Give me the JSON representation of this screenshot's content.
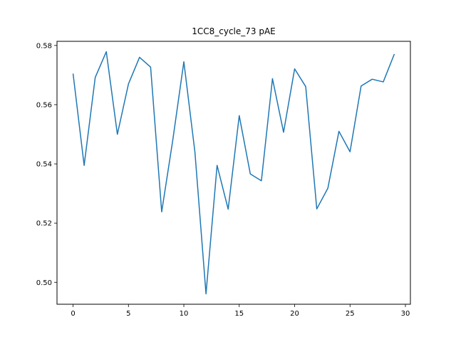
{
  "chart_data": {
    "type": "line",
    "title": "1CC8_cycle_73 pAE",
    "xlabel": "",
    "ylabel": "",
    "xlim": [
      -1.45,
      30.45
    ],
    "ylim": [
      0.4926,
      0.5814
    ],
    "x_ticks": [
      0,
      5,
      10,
      15,
      20,
      25,
      30
    ],
    "y_ticks": [
      0.5,
      0.52,
      0.54,
      0.56,
      0.58
    ],
    "grid": false,
    "series": [
      {
        "color": "#1f77b4",
        "x": [
          0,
          1,
          2,
          3,
          4,
          5,
          6,
          7,
          8,
          9,
          10,
          11,
          12,
          13,
          14,
          15,
          16,
          17,
          18,
          19,
          20,
          21,
          22,
          23,
          24,
          25,
          26,
          27,
          28,
          29
        ],
        "y": [
          0.5705,
          0.5395,
          0.5692,
          0.5779,
          0.55,
          0.567,
          0.576,
          0.5727,
          0.5238,
          0.548,
          0.5745,
          0.544,
          0.4961,
          0.5395,
          0.5247,
          0.5563,
          0.5366,
          0.5343,
          0.5688,
          0.5507,
          0.5721,
          0.5661,
          0.5248,
          0.5318,
          0.551,
          0.5441,
          0.5663,
          0.5686,
          0.5677,
          0.5771
        ]
      }
    ]
  }
}
